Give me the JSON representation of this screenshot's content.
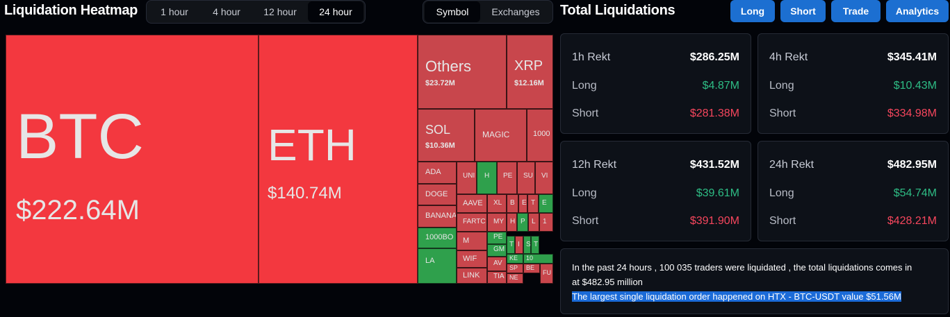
{
  "heatmap": {
    "title": "Liquidation Heatmap",
    "timeframes": [
      "1 hour",
      "4 hour",
      "12 hour",
      "24 hour"
    ],
    "active_timeframe": "24 hour",
    "group_by": [
      "Symbol",
      "Exchanges"
    ],
    "active_group": "Symbol",
    "tiles": [
      {
        "symbol": "BTC",
        "value": "$222.64M",
        "color": "bright"
      },
      {
        "symbol": "ETH",
        "value": "$140.74M",
        "color": "bright"
      },
      {
        "symbol": "Others",
        "value": "$23.72M",
        "color": "red"
      },
      {
        "symbol": "XRP",
        "value": "$12.16M",
        "color": "red"
      },
      {
        "symbol": "SOL",
        "value": "$10.36M",
        "color": "red"
      },
      {
        "symbol": "MAGIC",
        "value": "",
        "color": "red"
      },
      {
        "symbol": "1000",
        "value": "",
        "color": "red"
      },
      {
        "symbol": "ADA",
        "value": "",
        "color": "red"
      },
      {
        "symbol": "DOGE",
        "value": "",
        "color": "red"
      },
      {
        "symbol": "BANANA",
        "value": "",
        "color": "red"
      },
      {
        "symbol": "1000BO",
        "value": "",
        "color": "green"
      },
      {
        "symbol": "LA",
        "value": "",
        "color": "green"
      },
      {
        "symbol": "UNI",
        "value": "",
        "color": "red"
      },
      {
        "symbol": "H",
        "value": "",
        "color": "green"
      },
      {
        "symbol": "PE",
        "value": "",
        "color": "red"
      },
      {
        "symbol": "SU",
        "value": "",
        "color": "red"
      },
      {
        "symbol": "VI",
        "value": "",
        "color": "red"
      },
      {
        "symbol": "AAVE",
        "value": "",
        "color": "red"
      },
      {
        "symbol": "XL",
        "value": "",
        "color": "red"
      },
      {
        "symbol": "B",
        "value": "",
        "color": "red"
      },
      {
        "symbol": "E",
        "value": "",
        "color": "red"
      },
      {
        "symbol": "T",
        "value": "",
        "color": "red"
      },
      {
        "symbol": "E",
        "value": "",
        "color": "green"
      },
      {
        "symbol": "FARTC",
        "value": "",
        "color": "red"
      },
      {
        "symbol": "MY",
        "value": "",
        "color": "red"
      },
      {
        "symbol": "H",
        "value": "",
        "color": "red"
      },
      {
        "symbol": "P",
        "value": "",
        "color": "green"
      },
      {
        "symbol": "L",
        "value": "",
        "color": "red"
      },
      {
        "symbol": "1",
        "value": "",
        "color": "red"
      },
      {
        "symbol": "M",
        "value": "",
        "color": "red"
      },
      {
        "symbol": "PE",
        "value": "",
        "color": "green"
      },
      {
        "symbol": "T",
        "value": "",
        "color": "green"
      },
      {
        "symbol": "I",
        "value": "",
        "color": "red"
      },
      {
        "symbol": "S",
        "value": "",
        "color": "green"
      },
      {
        "symbol": "T",
        "value": "",
        "color": "green"
      },
      {
        "symbol": "GM",
        "value": "",
        "color": "green"
      },
      {
        "symbol": "WIF",
        "value": "",
        "color": "red"
      },
      {
        "symbol": "10",
        "value": "",
        "color": "green"
      },
      {
        "symbol": "KE",
        "value": "",
        "color": "green"
      },
      {
        "symbol": "AV",
        "value": "",
        "color": "red"
      },
      {
        "symbol": "SP",
        "value": "",
        "color": "red"
      },
      {
        "symbol": "LINK",
        "value": "",
        "color": "red"
      },
      {
        "symbol": "TIA",
        "value": "",
        "color": "red"
      },
      {
        "symbol": "NE",
        "value": "",
        "color": "red"
      },
      {
        "symbol": "BE",
        "value": "",
        "color": "red"
      },
      {
        "symbol": "FU",
        "value": "",
        "color": "red"
      }
    ]
  },
  "liquidations": {
    "title": "Total Liquidations",
    "buttons": [
      "Long",
      "Short",
      "Trade",
      "Analytics"
    ],
    "cards": [
      {
        "label": "1h Rekt",
        "total": "$286.25M",
        "long_label": "Long",
        "long": "$4.87M",
        "short_label": "Short",
        "short": "$281.38M"
      },
      {
        "label": "4h Rekt",
        "total": "$345.41M",
        "long_label": "Long",
        "long": "$10.43M",
        "short_label": "Short",
        "short": "$334.98M"
      },
      {
        "label": "12h Rekt",
        "total": "$431.52M",
        "long_label": "Long",
        "long": "$39.61M",
        "short_label": "Short",
        "short": "$391.90M"
      },
      {
        "label": "24h Rekt",
        "total": "$482.95M",
        "long_label": "Long",
        "long": "$54.74M",
        "short_label": "Short",
        "short": "$428.21M"
      }
    ],
    "summary": {
      "line1": "In the past 24 hours , 100 035 traders were liquidated , the total liquidations comes in",
      "line2": "at $482.95 million",
      "line3": "The largest single liquidation order happened on HTX - BTC-USDT value $51.56M"
    }
  },
  "colors": {
    "background": "#020409",
    "accent_blue": "#1c6fd1",
    "tile_bright_red": "#f3383f",
    "tile_red": "#c8464c",
    "tile_green": "#2fa04c",
    "long_green": "#2ebd85",
    "short_red": "#f6465d",
    "highlight": "#1b6bd8"
  }
}
